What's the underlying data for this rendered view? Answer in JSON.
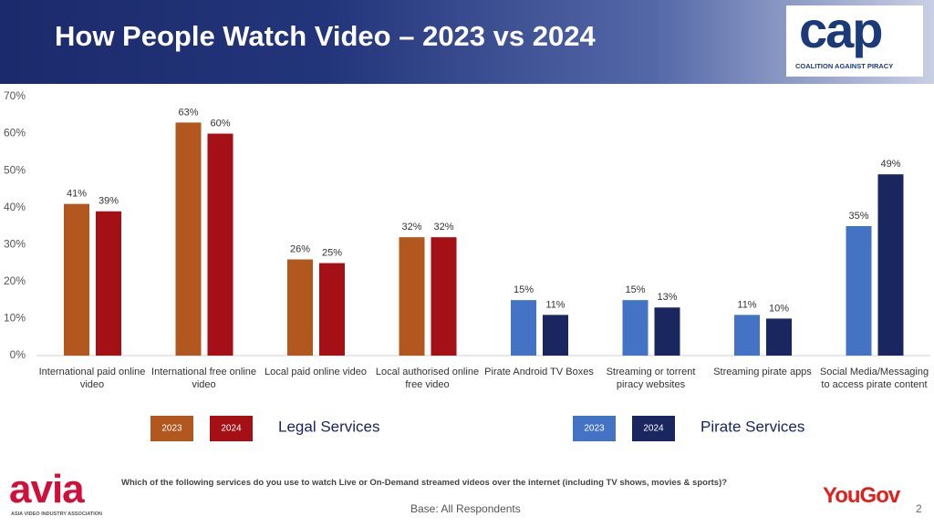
{
  "slide": {
    "title": "How People Watch Video – 2023 vs 2024",
    "logo": "cap",
    "logo_subtitle": "COALITION AGAINST PIRACY",
    "footer_logo": "avia",
    "footer_logo_subtitle": "ASIA VIDEO INDUSTRY ASSOCIATION",
    "question": "Which of the following services do you use to watch Live or On-Demand streamed videos over the internet (including TV shows, movies & sports)?",
    "base": "Base: All Respondents",
    "brand": "YouGov",
    "page_number": "2"
  },
  "chart_data": {
    "type": "bar",
    "ylim": [
      0,
      70
    ],
    "yticks": [
      {
        "value": 0,
        "label": "0%"
      },
      {
        "value": 10,
        "label": "10%"
      },
      {
        "value": 20,
        "label": "20%"
      },
      {
        "value": 30,
        "label": "30%"
      },
      {
        "value": 40,
        "label": "40%"
      },
      {
        "value": 50,
        "label": "50%"
      },
      {
        "value": 60,
        "label": "60%"
      },
      {
        "value": 70,
        "label": "70%"
      }
    ],
    "groups": [
      {
        "name": "Legal Services",
        "categories": [
          "International paid online video",
          "International free online video",
          "Local paid online video",
          "Local authorised online free video"
        ],
        "series": [
          {
            "name": "2023",
            "color": "#b2581f",
            "values": [
              41,
              63,
              26,
              32
            ],
            "value_labels": [
              "41%",
              "63%",
              "26%",
              "32%"
            ]
          },
          {
            "name": "2024",
            "color": "#a50f16",
            "values": [
              39,
              60,
              25,
              32
            ],
            "value_labels": [
              "39%",
              "60%",
              "25%",
              "32%"
            ]
          }
        ]
      },
      {
        "name": "Pirate Services",
        "categories": [
          "Pirate Android TV Boxes",
          "Streaming or torrent piracy websites",
          "Streaming pirate apps",
          "Social Media/Messaging to access pirate content"
        ],
        "series": [
          {
            "name": "2023",
            "color": "#4472c4",
            "values": [
              15,
              15,
              11,
              35
            ],
            "value_labels": [
              "15%",
              "15%",
              "11%",
              "35%"
            ]
          },
          {
            "name": "2024",
            "color": "#1a2660",
            "values": [
              11,
              13,
              10,
              49
            ],
            "value_labels": [
              "11%",
              "13%",
              "10%",
              "49%"
            ]
          }
        ]
      }
    ]
  }
}
